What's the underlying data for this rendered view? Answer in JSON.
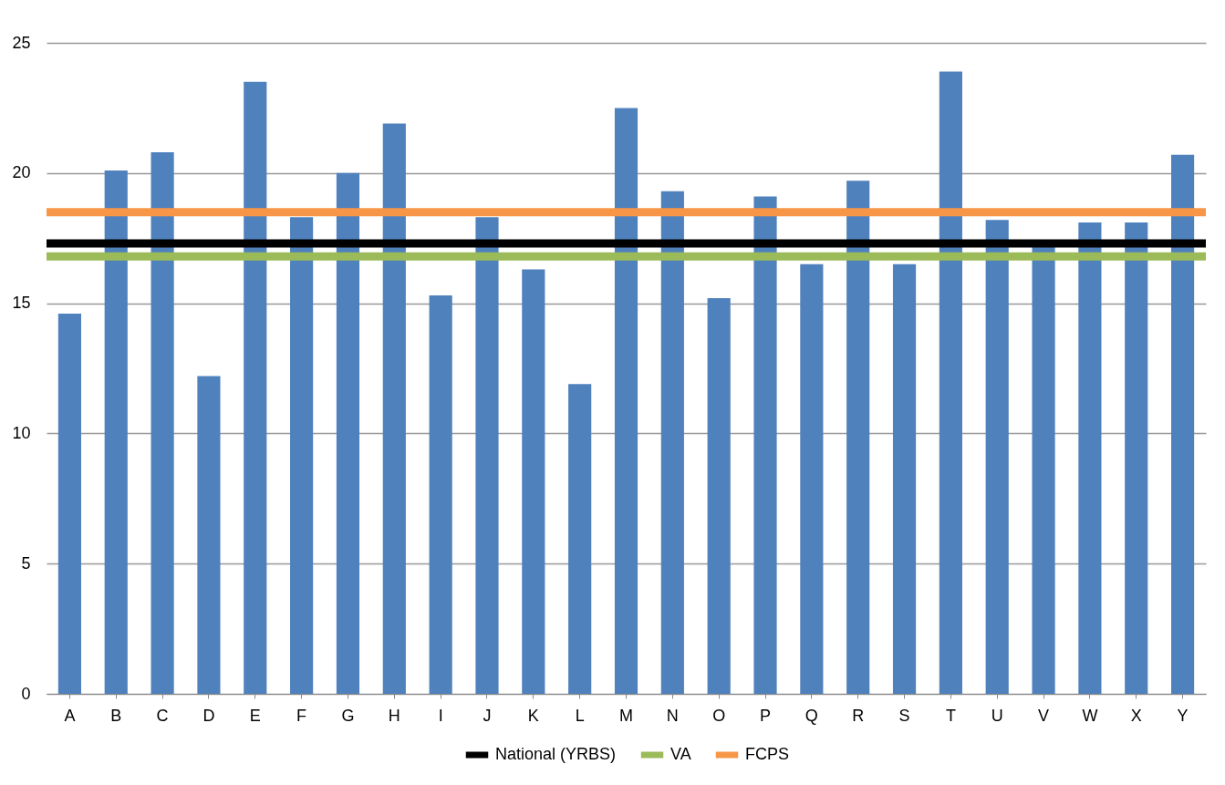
{
  "chart_data": {
    "type": "bar",
    "categories": [
      "A",
      "B",
      "C",
      "D",
      "E",
      "F",
      "G",
      "H",
      "I",
      "J",
      "K",
      "L",
      "M",
      "N",
      "O",
      "P",
      "Q",
      "R",
      "S",
      "T",
      "U",
      "V",
      "W",
      "X",
      "Y"
    ],
    "values": [
      14.6,
      20.1,
      20.8,
      12.2,
      23.5,
      18.3,
      20.0,
      21.9,
      15.3,
      18.3,
      16.3,
      11.9,
      22.5,
      19.3,
      15.2,
      19.1,
      16.5,
      19.7,
      16.5,
      23.9,
      18.2,
      17.2,
      18.1,
      18.1,
      20.7
    ],
    "color": "#4f81bd",
    "ylim": [
      0,
      25
    ],
    "yticks": [
      0,
      5,
      10,
      15,
      20,
      25
    ],
    "grid": "y",
    "legend": "bottom",
    "ref_lines": [
      {
        "axis": "y",
        "value": 17.3,
        "label": "National (YRBS)",
        "color": "#000000"
      },
      {
        "axis": "y",
        "value": 16.8,
        "label": "VA",
        "color": "#9bbb59"
      },
      {
        "axis": "y",
        "value": 18.5,
        "label": "FCPS",
        "color": "#f79646"
      }
    ]
  }
}
